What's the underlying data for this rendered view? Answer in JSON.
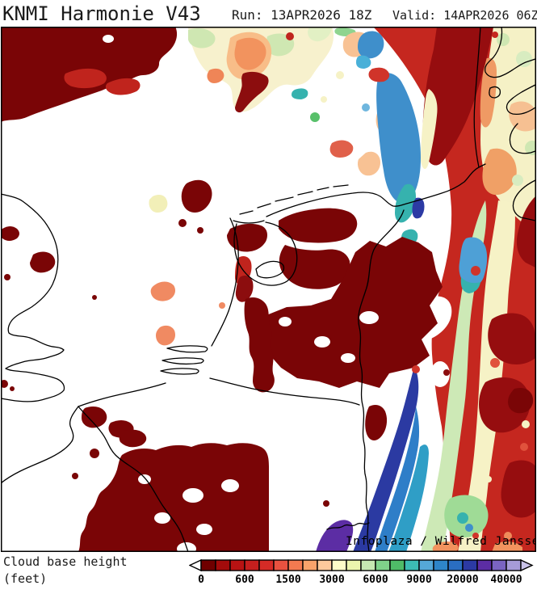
{
  "header": {
    "title": "KNMI Harmonie V43",
    "run": "Run: 13APR2026 18Z",
    "valid": "Valid: 14APR2026 06Z"
  },
  "map": {
    "watermark": "Infoplaza / Wilfred Janssen"
  },
  "legend": {
    "title_line1": "Cloud base height",
    "title_line2": "(feet)",
    "tick_labels": [
      "0",
      "600",
      "1500",
      "3000",
      "6000",
      "9000",
      "20000",
      "40000"
    ],
    "colors": [
      "#700000",
      "#a30b0b",
      "#b81313",
      "#c51f1e",
      "#d52b26",
      "#e85240",
      "#f37a50",
      "#f9a36b",
      "#fdc99c",
      "#fdfcc8",
      "#ecf5ae",
      "#c6e8b2",
      "#7fd28a",
      "#4fbc68",
      "#3cbcb4",
      "#55a8d8",
      "#2e85c8",
      "#2a6ec2",
      "#2c3aa4",
      "#5c2da4",
      "#7a64c2",
      "#a69bd8"
    ],
    "arrow_left": "#ffffff",
    "arrow_right": "#c9c2e8"
  },
  "chart_data": {
    "type": "heatmap",
    "title": "KNMI Harmonie V43",
    "subtitle": "Run: 13APR2026 18Z  Valid: 14APR2026 06Z",
    "variable": "Cloud base height",
    "units": "feet",
    "region": "Netherlands, North Sea, Belgium, NW Germany, Denmark",
    "legend_position": "bottom",
    "colorbar": {
      "tick_labels": [
        "0",
        "600",
        "1500",
        "3000",
        "6000",
        "9000",
        "20000",
        "40000"
      ],
      "colors": [
        "#700000",
        "#a30b0b",
        "#b81313",
        "#c51f1e",
        "#d52b26",
        "#e85240",
        "#f37a50",
        "#f9a36b",
        "#fdc99c",
        "#fdfcc8",
        "#ecf5ae",
        "#c6e8b2",
        "#7fd28a",
        "#4fbc68",
        "#3cbcb4",
        "#55a8d8",
        "#2e85c8",
        "#2a6ec2",
        "#2c3aa4",
        "#5c2da4",
        "#7a64c2",
        "#a69bd8"
      ],
      "open_ended_low": true,
      "open_ended_high": true
    },
    "features": [
      "Very low cloud base (dark red, <600 ft) mass over the NW North Sea top-left corner",
      "Pastel patch (3000-9000 ft) with orange core over the northern North Sea, top centre",
      "Broad band of very low to low cloud base (reds) over Germany along the right edge",
      "Blue/teal high cloud base (9000-40000 ft) patches along the Danish coast, upper right",
      "Pale green/cream corridor (3000-9000 ft) running north-south over western Germany",
      "Diagonal navy/teal/purple streak (20000-40000+ ft) over west Germany, bottom centre-right",
      "Scattered dark-red (<600 ft) low-stratus fields over NE Netherlands, Belgium and NRW",
      "Clear/white (no cloud) area over the central North Sea, UK coast and western Netherlands"
    ]
  }
}
